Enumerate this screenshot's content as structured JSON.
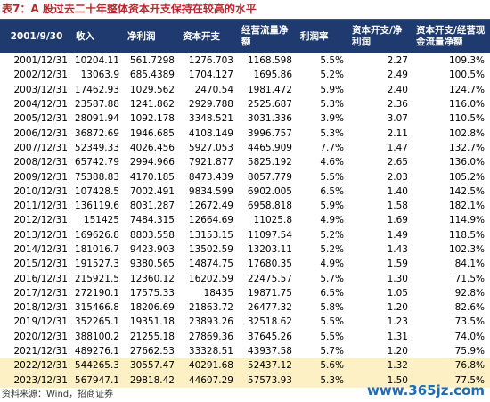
{
  "title": "表7：A 股过去二十年整体资本开支保持在较高的水平",
  "table": {
    "header": [
      "2001/9/30",
      "收入",
      "净利润",
      "资本开支",
      "经营流量净额",
      "利润率",
      "资本开支/净利润",
      "资本开支/经营现金流量净额"
    ],
    "rows": [
      [
        "2001/12/31",
        "10204.11",
        "561.7298",
        "1276.703",
        "1168.598",
        "5.5%",
        "2.27",
        "109.3%"
      ],
      [
        "2002/12/31",
        "13063.9",
        "685.4389",
        "1704.127",
        "1695.86",
        "5.2%",
        "2.49",
        "100.5%"
      ],
      [
        "2003/12/31",
        "17462.93",
        "1029.562",
        "2470.54",
        "1981.472",
        "5.9%",
        "2.40",
        "124.7%"
      ],
      [
        "2004/12/31",
        "23587.88",
        "1241.862",
        "2929.788",
        "2525.687",
        "5.3%",
        "2.36",
        "116.0%"
      ],
      [
        "2005/12/31",
        "28091.94",
        "1092.178",
        "3348.521",
        "3031.336",
        "3.9%",
        "3.07",
        "110.5%"
      ],
      [
        "2006/12/31",
        "36872.69",
        "1946.685",
        "4108.149",
        "3996.757",
        "5.3%",
        "2.11",
        "102.8%"
      ],
      [
        "2007/12/31",
        "52349.33",
        "4026.456",
        "5927.053",
        "4465.909",
        "7.7%",
        "1.47",
        "132.7%"
      ],
      [
        "2008/12/31",
        "65742.79",
        "2994.966",
        "7921.877",
        "5825.192",
        "4.6%",
        "2.65",
        "136.0%"
      ],
      [
        "2009/12/31",
        "75388.83",
        "4170.185",
        "8473.439",
        "8057.779",
        "5.5%",
        "2.03",
        "105.2%"
      ],
      [
        "2010/12/31",
        "107428.5",
        "7002.491",
        "9834.599",
        "6902.005",
        "6.5%",
        "1.40",
        "142.5%"
      ],
      [
        "2011/12/31",
        "136119.6",
        "8031.287",
        "12672.49",
        "6958.818",
        "5.9%",
        "1.58",
        "182.1%"
      ],
      [
        "2012/12/31",
        "151425",
        "7484.315",
        "12664.69",
        "11025.8",
        "4.9%",
        "1.69",
        "114.9%"
      ],
      [
        "2013/12/31",
        "169626.8",
        "8803.558",
        "13153.15",
        "11097.54",
        "5.2%",
        "1.49",
        "118.5%"
      ],
      [
        "2014/12/31",
        "181016.7",
        "9423.903",
        "13502.59",
        "13203.11",
        "5.2%",
        "1.43",
        "102.3%"
      ],
      [
        "2015/12/31",
        "191527.3",
        "9380.565",
        "14874.75",
        "17680.35",
        "4.9%",
        "1.59",
        "84.1%"
      ],
      [
        "2016/12/31",
        "215921.5",
        "12360.12",
        "16202.59",
        "22475.57",
        "5.7%",
        "1.30",
        "71.5%"
      ],
      [
        "2017/12/31",
        "272190.1",
        "17575.33",
        "18435",
        "19871.75",
        "6.5%",
        "1.05",
        "92.8%"
      ],
      [
        "2018/12/31",
        "315466.8",
        "18206.69",
        "21863.72",
        "26477.32",
        "5.8%",
        "1.20",
        "82.6%"
      ],
      [
        "2019/12/31",
        "352265.1",
        "19351.18",
        "23893.26",
        "32518.62",
        "5.5%",
        "1.23",
        "73.5%"
      ],
      [
        "2020/12/31",
        "388100.2",
        "21255.18",
        "27869.36",
        "37645.26",
        "5.5%",
        "1.31",
        "74.0%"
      ],
      [
        "2021/12/31",
        "489276.1",
        "27662.53",
        "33328.51",
        "43937.58",
        "5.7%",
        "1.20",
        "75.9%"
      ],
      [
        "2022/12/31",
        "544265.3",
        "30557.47",
        "40291.68",
        "52437.12",
        "5.6%",
        "1.32",
        "76.8%"
      ],
      [
        "2023/12/31",
        "567947.1",
        "29818.42",
        "44607.29",
        "57573.93",
        "5.3%",
        "1.50",
        "77.5%"
      ]
    ]
  },
  "source": "资料来源：Wind，招商证券",
  "watermark": "www.365jz.com"
}
